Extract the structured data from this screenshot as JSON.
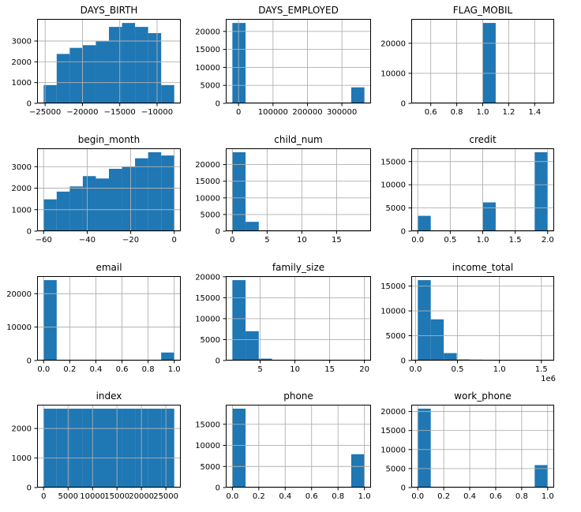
{
  "figure": {
    "kind": "pandas-histogram-grid",
    "rows": 4,
    "cols": 3,
    "background": "#ffffff"
  },
  "colors": {
    "bar": "#1f77b4",
    "grid": "#b0b0b0",
    "spine": "#000000",
    "text": "#000000"
  },
  "chart_data": [
    {
      "name": "days-birth",
      "type": "bar",
      "title": "DAYS_BIRTH",
      "xlim": [
        -26075,
        -6825
      ],
      "ylim": [
        0,
        4064
      ],
      "bin_start": -25200,
      "bin_width": 1750,
      "values": [
        880,
        2380,
        2670,
        2800,
        2980,
        3680,
        3870,
        3680,
        3380,
        880
      ],
      "xticks": [
        {
          "v": -25000,
          "label": "−25000"
        },
        {
          "v": -20000,
          "label": "−20000"
        },
        {
          "v": -15000,
          "label": "−15000"
        },
        {
          "v": -10000,
          "label": "−10000"
        }
      ],
      "yticks": [
        {
          "v": 0,
          "label": "0"
        },
        {
          "v": 1000,
          "label": "1000"
        },
        {
          "v": 2000,
          "label": "2000"
        },
        {
          "v": 3000,
          "label": "3000"
        }
      ]
    },
    {
      "name": "days-employed",
      "type": "bar",
      "title": "DAYS_EMPLOYED",
      "xlim": [
        -37070,
        384400
      ],
      "ylim": [
        0,
        23470
      ],
      "bin_start": -17912,
      "bin_width": 38315,
      "values": [
        22350,
        0,
        0,
        0,
        0,
        0,
        0,
        0,
        0,
        4450
      ],
      "xticks": [
        {
          "v": 0,
          "label": "0"
        },
        {
          "v": 100000,
          "label": "100000"
        },
        {
          "v": 200000,
          "label": "200000"
        },
        {
          "v": 300000,
          "label": "300000"
        }
      ],
      "yticks": [
        {
          "v": 0,
          "label": "0"
        },
        {
          "v": 5000,
          "label": "5000"
        },
        {
          "v": 10000,
          "label": "10000"
        },
        {
          "v": 15000,
          "label": "15000"
        },
        {
          "v": 20000,
          "label": "20000"
        }
      ]
    },
    {
      "name": "flag-mobil",
      "type": "bar",
      "title": "FLAG_MOBIL",
      "xlim": [
        0.45,
        1.55
      ],
      "ylim": [
        0,
        28100
      ],
      "bin_start": 0.5,
      "bin_width": 0.1,
      "values": [
        0,
        0,
        0,
        0,
        0,
        26760,
        0,
        0,
        0,
        0
      ],
      "xticks": [
        {
          "v": 0.6,
          "label": "0.6"
        },
        {
          "v": 0.8,
          "label": "0.8"
        },
        {
          "v": 1.0,
          "label": "1.0"
        },
        {
          "v": 1.2,
          "label": "1.2"
        },
        {
          "v": 1.4,
          "label": "1.4"
        }
      ],
      "yticks": [
        {
          "v": 0,
          "label": "0"
        },
        {
          "v": 10000,
          "label": "10000"
        },
        {
          "v": 20000,
          "label": "20000"
        }
      ]
    },
    {
      "name": "begin-month",
      "type": "bar",
      "title": "begin_month",
      "xlim": [
        -63,
        3
      ],
      "ylim": [
        0,
        3854
      ],
      "bin_start": -60,
      "bin_width": 6,
      "values": [
        1480,
        1840,
        2080,
        2560,
        2450,
        2900,
        3000,
        3390,
        3670,
        3520
      ],
      "xticks": [
        {
          "v": -60,
          "label": "−60"
        },
        {
          "v": -40,
          "label": "−40"
        },
        {
          "v": -20,
          "label": "−20"
        },
        {
          "v": 0,
          "label": "0"
        }
      ],
      "yticks": [
        {
          "v": 0,
          "label": "0"
        },
        {
          "v": 1000,
          "label": "1000"
        },
        {
          "v": 2000,
          "label": "2000"
        },
        {
          "v": 3000,
          "label": "3000"
        }
      ]
    },
    {
      "name": "child-num",
      "type": "bar",
      "title": "child_num",
      "xlim": [
        -0.95,
        19.95
      ],
      "ylim": [
        0,
        24885
      ],
      "bin_start": 0,
      "bin_width": 1.9,
      "values": [
        23700,
        2800,
        250,
        0,
        0,
        0,
        0,
        0,
        0,
        0
      ],
      "xticks": [
        {
          "v": 0,
          "label": "0"
        },
        {
          "v": 5,
          "label": "5"
        },
        {
          "v": 10,
          "label": "10"
        },
        {
          "v": 15,
          "label": "15"
        }
      ],
      "yticks": [
        {
          "v": 0,
          "label": "0"
        },
        {
          "v": 5000,
          "label": "5000"
        },
        {
          "v": 10000,
          "label": "10000"
        },
        {
          "v": 15000,
          "label": "15000"
        },
        {
          "v": 20000,
          "label": "20000"
        }
      ]
    },
    {
      "name": "credit",
      "type": "bar",
      "title": "credit",
      "xlim": [
        -0.1,
        2.1
      ],
      "ylim": [
        0,
        17850
      ],
      "bin_start": 0,
      "bin_width": 0.2,
      "values": [
        3300,
        0,
        0,
        0,
        0,
        6200,
        0,
        0,
        0,
        17000
      ],
      "xticks": [
        {
          "v": 0.0,
          "label": "0.0"
        },
        {
          "v": 0.5,
          "label": "0.5"
        },
        {
          "v": 1.0,
          "label": "1.0"
        },
        {
          "v": 1.5,
          "label": "1.5"
        },
        {
          "v": 2.0,
          "label": "2.0"
        }
      ],
      "yticks": [
        {
          "v": 0,
          "label": "0"
        },
        {
          "v": 5000,
          "label": "5000"
        },
        {
          "v": 10000,
          "label": "10000"
        },
        {
          "v": 15000,
          "label": "15000"
        }
      ]
    },
    {
      "name": "email",
      "type": "bar",
      "title": "email",
      "xlim": [
        -0.05,
        1.05
      ],
      "ylim": [
        0,
        25250
      ],
      "bin_start": 0,
      "bin_width": 0.1,
      "values": [
        24050,
        0,
        0,
        0,
        0,
        0,
        0,
        0,
        0,
        2400
      ],
      "xticks": [
        {
          "v": 0.0,
          "label": "0.0"
        },
        {
          "v": 0.2,
          "label": "0.2"
        },
        {
          "v": 0.4,
          "label": "0.4"
        },
        {
          "v": 0.6,
          "label": "0.6"
        },
        {
          "v": 0.8,
          "label": "0.8"
        },
        {
          "v": 1.0,
          "label": "1.0"
        }
      ],
      "yticks": [
        {
          "v": 0,
          "label": "0"
        },
        {
          "v": 10000,
          "label": "10000"
        },
        {
          "v": 20000,
          "label": "20000"
        }
      ]
    },
    {
      "name": "family-size",
      "type": "bar",
      "title": "family_size",
      "xlim": [
        0.05,
        20.95
      ],
      "ylim": [
        0,
        20160
      ],
      "bin_start": 1,
      "bin_width": 1.9,
      "values": [
        19200,
        7000,
        450,
        0,
        0,
        0,
        0,
        0,
        0,
        0
      ],
      "xticks": [
        {
          "v": 5,
          "label": "5"
        },
        {
          "v": 10,
          "label": "10"
        },
        {
          "v": 15,
          "label": "15"
        },
        {
          "v": 20,
          "label": "20"
        }
      ],
      "yticks": [
        {
          "v": 0,
          "label": "0"
        },
        {
          "v": 5000,
          "label": "5000"
        },
        {
          "v": 10000,
          "label": "10000"
        },
        {
          "v": 15000,
          "label": "15000"
        },
        {
          "v": 20000,
          "label": "20000"
        }
      ]
    },
    {
      "name": "income-total",
      "type": "bar",
      "title": "income_total",
      "xlim": [
        -50400,
        1652400
      ],
      "ylim": [
        0,
        17010
      ],
      "bin_start": 27000,
      "bin_width": 154800,
      "values": [
        16200,
        8300,
        1500,
        220,
        180,
        0,
        0,
        0,
        0,
        0
      ],
      "x_offset_label": "1e6",
      "xticks": [
        {
          "v": 0,
          "label": "0.0"
        },
        {
          "v": 500000,
          "label": "0.5"
        },
        {
          "v": 1000000,
          "label": "1.0"
        },
        {
          "v": 1500000,
          "label": "1.5"
        }
      ],
      "yticks": [
        {
          "v": 0,
          "label": "0"
        },
        {
          "v": 5000,
          "label": "5000"
        },
        {
          "v": 10000,
          "label": "10000"
        },
        {
          "v": 15000,
          "label": "15000"
        }
      ]
    },
    {
      "name": "index",
      "type": "bar",
      "title": "index",
      "xlim": [
        -1336,
        28048
      ],
      "ylim": [
        0,
        2805
      ],
      "bin_start": 0,
      "bin_width": 2671.2,
      "values": [
        2671,
        2671,
        2671,
        2671,
        2671,
        2671,
        2671,
        2671,
        2671,
        2671
      ],
      "xticks": [
        {
          "v": 0,
          "label": "0"
        },
        {
          "v": 5000,
          "label": "5000"
        },
        {
          "v": 10000,
          "label": "10000"
        },
        {
          "v": 15000,
          "label": "15000"
        },
        {
          "v": 20000,
          "label": "20000"
        },
        {
          "v": 25000,
          "label": "25000"
        }
      ],
      "yticks": [
        {
          "v": 0,
          "label": "0"
        },
        {
          "v": 1000,
          "label": "1000"
        },
        {
          "v": 2000,
          "label": "2000"
        }
      ]
    },
    {
      "name": "phone",
      "type": "bar",
      "title": "phone",
      "xlim": [
        -0.05,
        1.05
      ],
      "ylim": [
        0,
        19635
      ],
      "bin_start": 0,
      "bin_width": 0.1,
      "values": [
        18700,
        0,
        0,
        0,
        0,
        0,
        0,
        0,
        0,
        7900
      ],
      "xticks": [
        {
          "v": 0.0,
          "label": "0.0"
        },
        {
          "v": 0.2,
          "label": "0.2"
        },
        {
          "v": 0.4,
          "label": "0.4"
        },
        {
          "v": 0.6,
          "label": "0.6"
        },
        {
          "v": 0.8,
          "label": "0.8"
        },
        {
          "v": 1.0,
          "label": "1.0"
        }
      ],
      "yticks": [
        {
          "v": 0,
          "label": "0"
        },
        {
          "v": 5000,
          "label": "5000"
        },
        {
          "v": 10000,
          "label": "10000"
        },
        {
          "v": 15000,
          "label": "15000"
        }
      ]
    },
    {
      "name": "work-phone",
      "type": "bar",
      "title": "work_phone",
      "xlim": [
        -0.05,
        1.05
      ],
      "ylim": [
        0,
        21790
      ],
      "bin_start": 0,
      "bin_width": 0.1,
      "values": [
        20750,
        0,
        0,
        0,
        0,
        0,
        0,
        0,
        0,
        5900
      ],
      "xticks": [
        {
          "v": 0.0,
          "label": "0.0"
        },
        {
          "v": 0.2,
          "label": "0.2"
        },
        {
          "v": 0.4,
          "label": "0.4"
        },
        {
          "v": 0.6,
          "label": "0.6"
        },
        {
          "v": 0.8,
          "label": "0.8"
        },
        {
          "v": 1.0,
          "label": "1.0"
        }
      ],
      "yticks": [
        {
          "v": 0,
          "label": "0"
        },
        {
          "v": 5000,
          "label": "5000"
        },
        {
          "v": 10000,
          "label": "10000"
        },
        {
          "v": 15000,
          "label": "15000"
        },
        {
          "v": 20000,
          "label": "20000"
        }
      ]
    }
  ]
}
